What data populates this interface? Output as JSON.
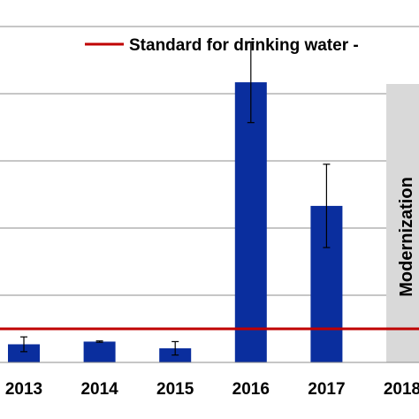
{
  "chart_data": {
    "type": "bar",
    "title": "",
    "xlabel": "",
    "ylabel": "",
    "categories": [
      "2013",
      "2014",
      "2015",
      "2016",
      "2017",
      "2018"
    ],
    "series": [
      {
        "values": [
          2.7,
          3.1,
          2.1,
          41.7,
          23.3,
          null
        ],
        "error": [
          1.1,
          0.1,
          1.0,
          6.0,
          6.2,
          null
        ],
        "color": "#0a2e9e"
      }
    ],
    "ylim": [
      0,
      50
    ],
    "grid": "horizontal",
    "reference_line": {
      "label": "Standard for drinking water -",
      "value": 5,
      "color": "#c00000"
    },
    "annotation": {
      "label": "Modernization",
      "category": "2018",
      "color": "#d9d9d9"
    },
    "legend": "top-right"
  }
}
